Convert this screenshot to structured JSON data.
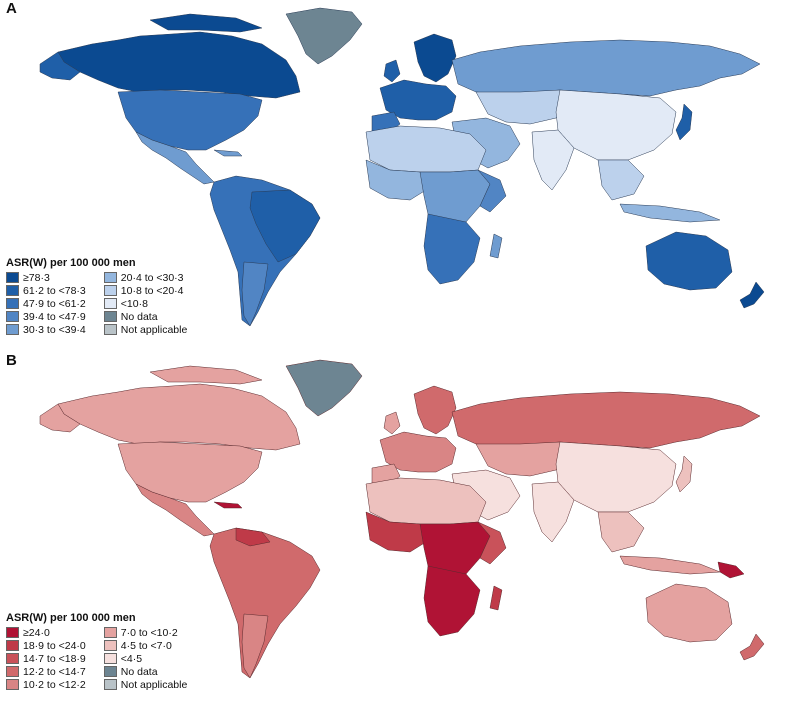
{
  "panel_a": {
    "letter": "A",
    "legend_title": "ASR(W) per 100 000 men",
    "legend_left": [
      {
        "label": "≥78·3",
        "color": "#0b4a91"
      },
      {
        "label": "61·2 to <78·3",
        "color": "#1f5fa8"
      },
      {
        "label": "47·9 to <61·2",
        "color": "#3671b8"
      },
      {
        "label": "39·4 to <47·9",
        "color": "#5185c4"
      },
      {
        "label": "30·3 to <39·4",
        "color": "#6f9cd0"
      }
    ],
    "legend_right": [
      {
        "label": "20·4 to <30·3",
        "color": "#93b6de"
      },
      {
        "label": "10·8 to <20·4",
        "color": "#bcd1ec"
      },
      {
        "label": "<10·8",
        "color": "#e2eaf6"
      },
      {
        "label": "No data",
        "color": "#6d8592"
      },
      {
        "label": "Not applicable",
        "color": "#b9c3c8"
      }
    ]
  },
  "panel_b": {
    "letter": "B",
    "legend_title": "ASR(W) per 100 000 men",
    "legend_left": [
      {
        "label": "≥24·0",
        "color": "#b01335"
      },
      {
        "label": "18·9 to <24·0",
        "color": "#bf3a48"
      },
      {
        "label": "14·7 to <18·9",
        "color": "#c9525a"
      },
      {
        "label": "12·2 to <14·7",
        "color": "#d06a6c"
      },
      {
        "label": "10·2 to <12·2",
        "color": "#d98585"
      }
    ],
    "legend_right": [
      {
        "label": "7·0 to <10·2",
        "color": "#e4a2a0"
      },
      {
        "label": "4·5 to <7·0",
        "color": "#edc1be"
      },
      {
        "label": "<4·5",
        "color": "#f6e0de"
      },
      {
        "label": "No data",
        "color": "#6d8592"
      },
      {
        "label": "Not applicable",
        "color": "#b9c3c8"
      }
    ]
  }
}
